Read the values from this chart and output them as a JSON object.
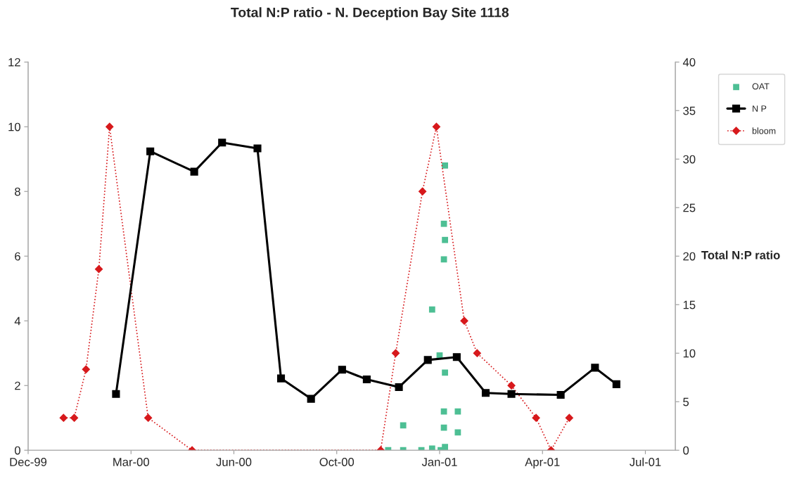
{
  "chart_data": {
    "type": "line",
    "title": "Total N:P ratio - N. Deception Bay Site 1118",
    "y2label": "Total N:P ratio",
    "xlim": [
      "1999-12-19",
      "2001-08-14"
    ],
    "xticks": [
      {
        "value": "1999-12-19",
        "label": "Dec-99"
      },
      {
        "value": "2000-03-24",
        "label": "Mar-00"
      },
      {
        "value": "2000-06-28",
        "label": "Jun-00"
      },
      {
        "value": "2000-10-02",
        "label": "Oct-00"
      },
      {
        "value": "2001-01-06",
        "label": "Jan-01"
      },
      {
        "value": "2001-04-12",
        "label": "Apr-01"
      },
      {
        "value": "2001-07-17",
        "label": "Jul-01"
      }
    ],
    "ylim": [
      0,
      12
    ],
    "yticks": [
      0,
      2,
      4,
      6,
      8,
      10,
      12
    ],
    "y2lim": [
      0,
      40
    ],
    "y2ticks": [
      0,
      5,
      10,
      15,
      20,
      25,
      30,
      35,
      40
    ],
    "grid": false,
    "legend": "top right",
    "series": [
      {
        "name": "OAT",
        "type": "scatter",
        "marker": "square",
        "color": "#4dbf94",
        "x": [
          "2000-11-19",
          "2000-12-03",
          "2000-12-03",
          "2000-12-20",
          "2000-12-30",
          "2000-12-30",
          "2001-01-06",
          "2001-01-07",
          "2001-01-10",
          "2001-01-10",
          "2001-01-10",
          "2001-01-10",
          "2001-01-11",
          "2001-01-11",
          "2001-01-11",
          "2001-01-11",
          "2001-01-23",
          "2001-01-23"
        ],
        "values": [
          0,
          0.77,
          0,
          0,
          4.35,
          0.05,
          2.93,
          0,
          7.0,
          5.9,
          1.2,
          0.7,
          8.8,
          6.5,
          2.4,
          0.1,
          1.2,
          0.55
        ]
      },
      {
        "name": "N P",
        "axis": "y2",
        "marker": "square",
        "line_style": "solid",
        "color": "#000000",
        "x": [
          "2000-03-10",
          "2000-04-11",
          "2000-05-22",
          "2000-06-17",
          "2000-07-20",
          "2000-08-11",
          "2000-09-08",
          "2000-10-07",
          "2000-10-30",
          "2000-11-29",
          "2000-12-26",
          "2001-01-22",
          "2001-02-18",
          "2001-03-14",
          "2001-04-29",
          "2001-05-31",
          "2001-06-20"
        ],
        "values": [
          5.8,
          30.8,
          28.7,
          31.7,
          31.1,
          7.4,
          5.3,
          8.3,
          7.3,
          6.5,
          9.3,
          9.6,
          5.9,
          5.8,
          5.7,
          8.5,
          6.8
        ]
      },
      {
        "name": "bloom",
        "marker": "diamond",
        "line_style": "dotted",
        "color": "#d7191c",
        "x": [
          "2000-01-21",
          "2000-01-31",
          "2000-02-11",
          "2000-02-23",
          "2000-03-04",
          "2000-04-09",
          "2000-05-20",
          "2000-11-12",
          "2000-11-26",
          "2000-12-21",
          "2001-01-03",
          "2001-01-29",
          "2001-02-10",
          "2001-03-14",
          "2001-04-06",
          "2001-04-20",
          "2001-05-07"
        ],
        "values": [
          1,
          1,
          2.5,
          5.6,
          10,
          1,
          0,
          0,
          3,
          8,
          10,
          4,
          3,
          2,
          1,
          0,
          1
        ]
      }
    ]
  }
}
